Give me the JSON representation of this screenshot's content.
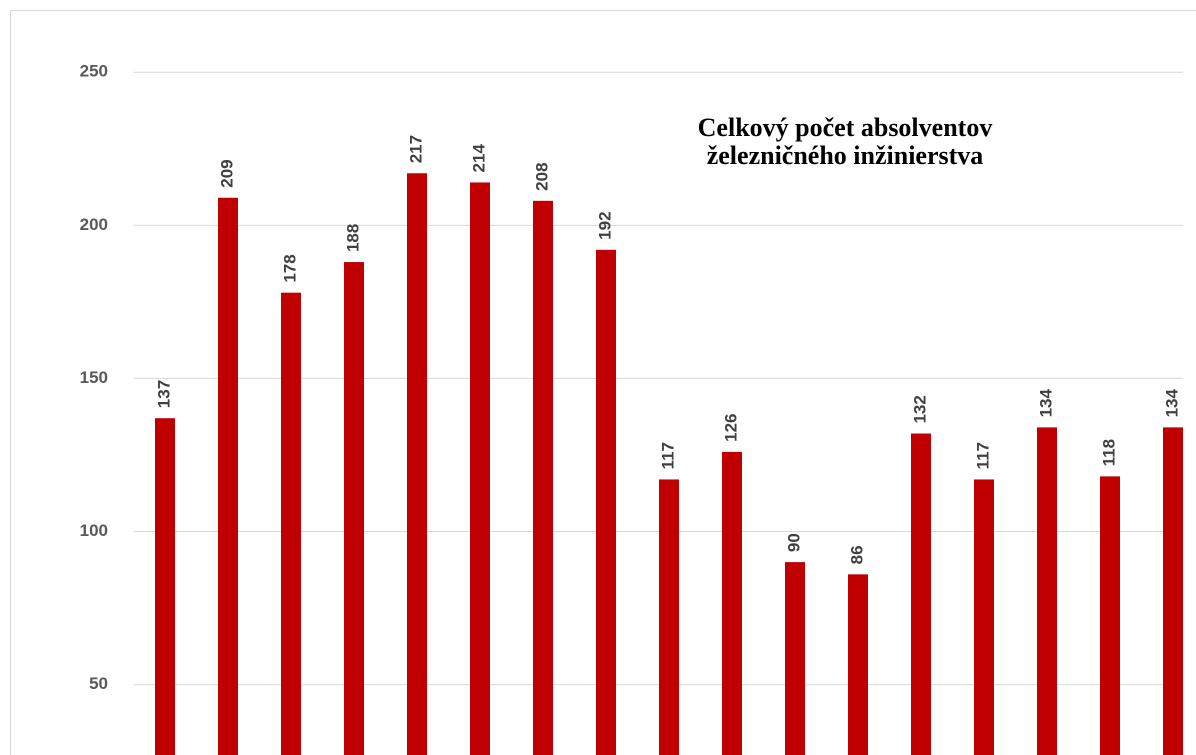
{
  "chart_data": {
    "type": "bar",
    "title": [
      "Celkový počet absolventov",
      "železničného inžinierstva"
    ],
    "categories": [
      null,
      null,
      null,
      null,
      null,
      null,
      null,
      null,
      null,
      null,
      null,
      null,
      null,
      null,
      null,
      null,
      null
    ],
    "values": [
      137,
      209,
      178,
      188,
      217,
      214,
      208,
      192,
      117,
      126,
      90,
      86,
      132,
      117,
      134,
      118,
      134
    ],
    "color": "#c00000",
    "ylim": [
      27,
      270
    ],
    "yticks": [
      50,
      100,
      150,
      200,
      250
    ],
    "grid": true
  }
}
